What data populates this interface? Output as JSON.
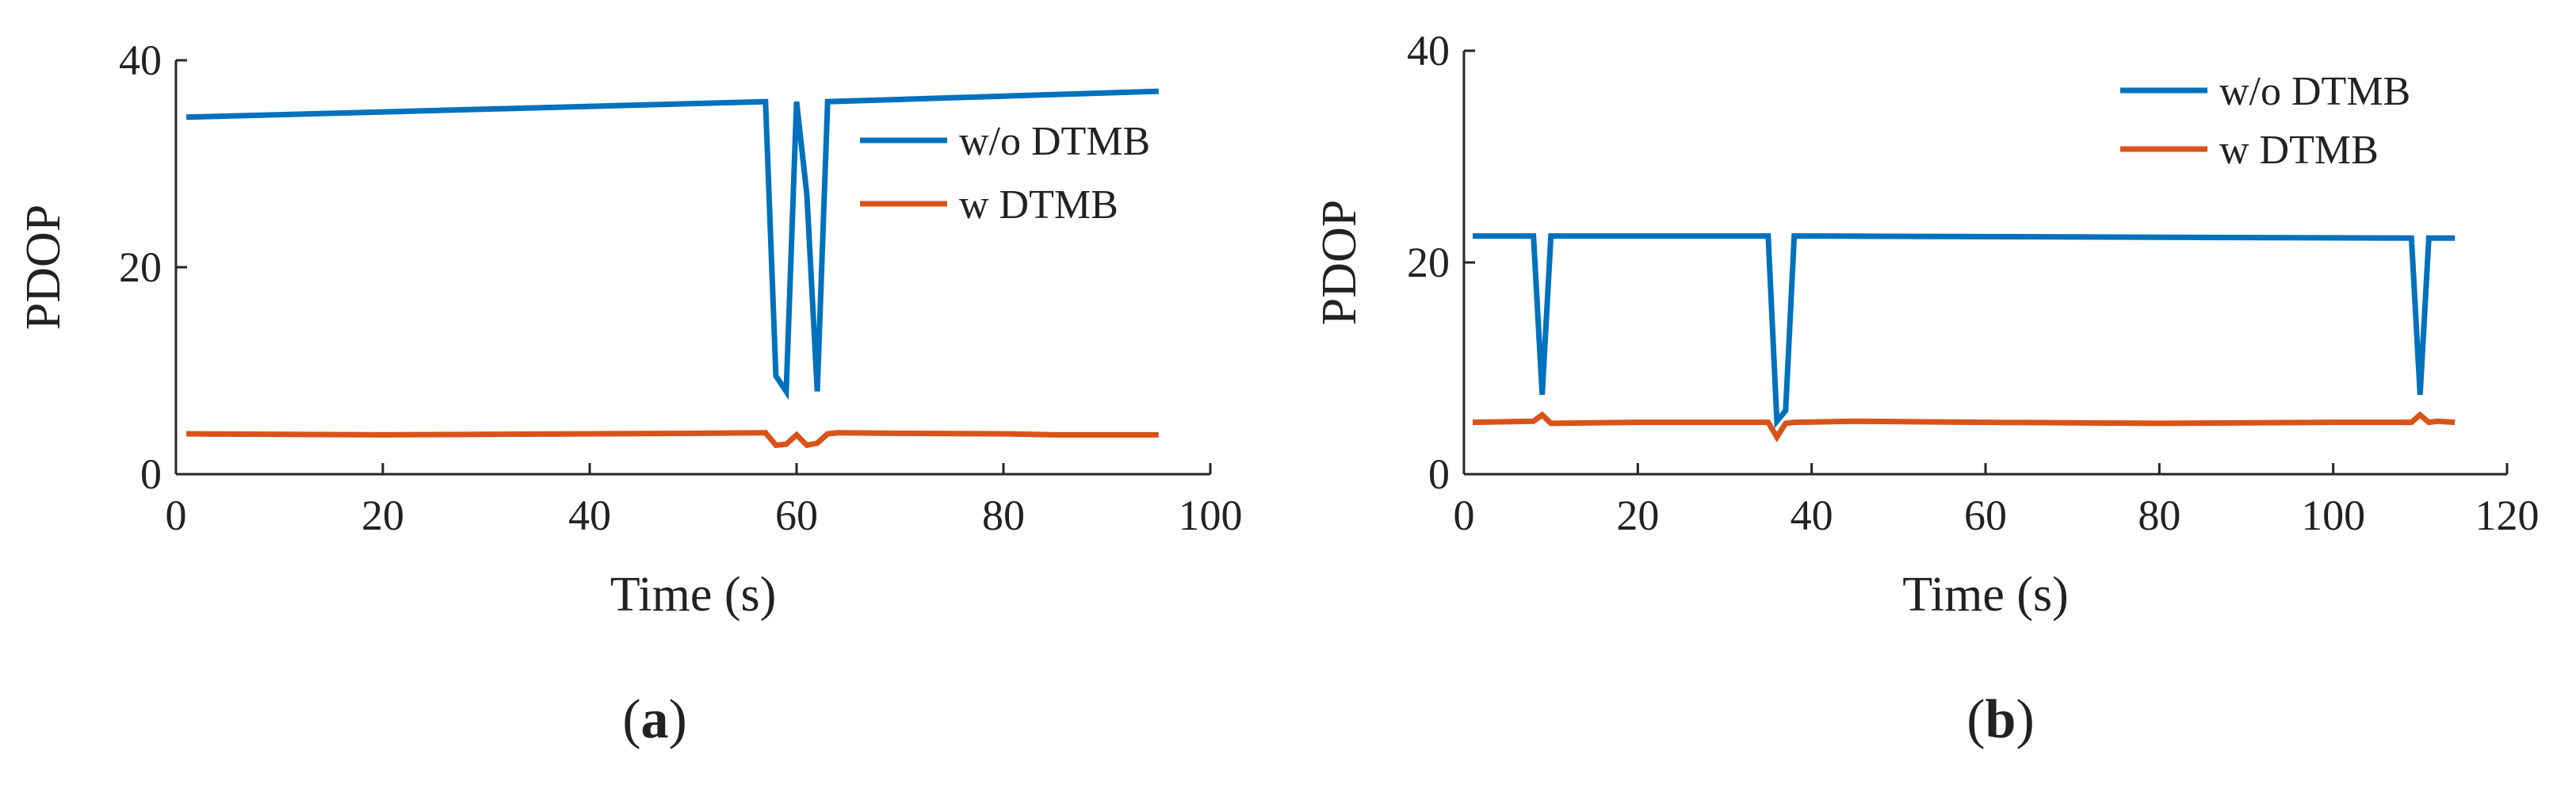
{
  "chart_data": [
    {
      "type": "line",
      "panel_label": {
        "open": "(",
        "letter": "a",
        "close": ")"
      },
      "xlabel": "Time (s)",
      "ylabel": "PDOP",
      "xlim": [
        0,
        100
      ],
      "ylim": [
        0,
        40
      ],
      "xticks": [
        0,
        20,
        40,
        60,
        80,
        100
      ],
      "yticks": [
        0,
        20,
        40
      ],
      "grid": false,
      "legend": "top-right",
      "series": [
        {
          "name": "w/o DTMB",
          "color": "#0072BD",
          "x": [
            1,
            57,
            58,
            59,
            60,
            61,
            62,
            63,
            95
          ],
          "y": [
            34.5,
            36,
            9.5,
            8,
            36,
            27,
            8,
            36,
            37
          ]
        },
        {
          "name": "w DTMB",
          "color": "#D95319",
          "x": [
            1,
            10,
            20,
            30,
            40,
            50,
            57,
            58,
            59,
            60,
            61,
            62,
            63,
            64,
            70,
            80,
            85,
            90,
            95
          ],
          "y": [
            3.9,
            3.85,
            3.8,
            3.85,
            3.9,
            3.95,
            4.0,
            2.8,
            2.9,
            3.8,
            2.8,
            3.0,
            3.9,
            4.0,
            3.95,
            3.9,
            3.8,
            3.8,
            3.8
          ]
        }
      ]
    },
    {
      "type": "line",
      "panel_label": {
        "open": "(",
        "letter": "b",
        "close": ")"
      },
      "xlabel": "Time (s)",
      "ylabel": "PDOP",
      "xlim": [
        0,
        120
      ],
      "ylim": [
        0,
        40
      ],
      "xticks": [
        0,
        20,
        40,
        60,
        80,
        100,
        120
      ],
      "yticks": [
        0,
        20,
        40
      ],
      "grid": false,
      "legend": "top-right",
      "series": [
        {
          "name": "w/o DTMB",
          "color": "#0072BD",
          "x": [
            1,
            8,
            9,
            10,
            35,
            36,
            37,
            38,
            109,
            110,
            111,
            114
          ],
          "y": [
            22.5,
            22.5,
            7.5,
            22.5,
            22.5,
            5,
            6,
            22.5,
            22.3,
            7.5,
            22.3,
            22.3
          ]
        },
        {
          "name": "w DTMB",
          "color": "#D95319",
          "x": [
            1,
            8,
            9,
            10,
            20,
            30,
            35,
            36,
            37,
            38,
            45,
            60,
            80,
            100,
            109,
            110,
            111,
            112,
            114
          ],
          "y": [
            4.9,
            5.0,
            5.6,
            4.8,
            4.9,
            4.9,
            4.9,
            3.5,
            4.8,
            4.9,
            5.0,
            4.9,
            4.8,
            4.9,
            4.9,
            5.6,
            4.9,
            5.0,
            4.9
          ]
        }
      ]
    }
  ]
}
